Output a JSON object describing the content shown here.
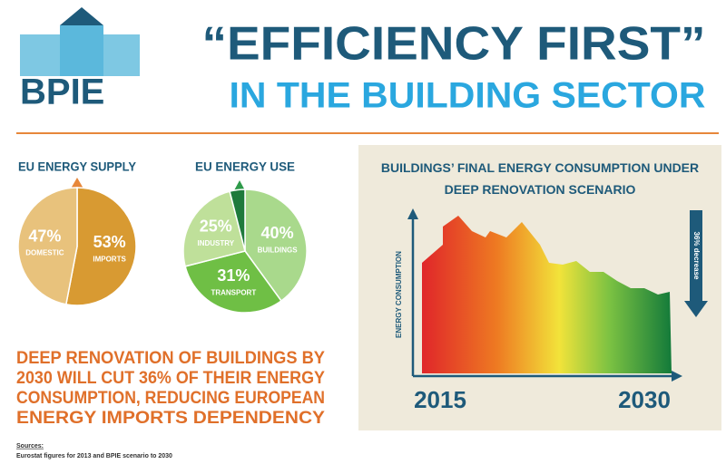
{
  "header": {
    "logo": "BPIE",
    "title": "“EFFICIENCY FIRST”",
    "subtitle": "IN THE BUILDING SECTOR"
  },
  "chart_data": [
    {
      "type": "pie",
      "title": "EU ENERGY SUPPLY",
      "categories": [
        "IMPORTS",
        "DOMESTIC"
      ],
      "values": [
        53,
        47
      ],
      "value_labels": [
        "53%",
        "47%"
      ],
      "colors": [
        "#d89a32",
        "#e8c27c"
      ]
    },
    {
      "type": "pie",
      "title": "EU ENERGY USE",
      "categories": [
        "BUILDINGS",
        "TRANSPORT",
        "INDUSTRY",
        null
      ],
      "values": [
        40,
        31,
        25,
        4
      ],
      "value_labels": [
        "40%",
        "31%",
        "25%",
        null
      ],
      "colors": [
        "#a9d98c",
        "#6fbf45",
        "#bfe09a",
        "#1f7a3c"
      ]
    },
    {
      "type": "area",
      "title": "BUILDINGS’ FINAL ENERGY CONSUMPTION UNDER DEEP RENOVATION SCENARIO",
      "y_label": "ENERGY CONSUMPTION",
      "xlim": [
        2015,
        2030
      ],
      "xticks": [
        2015,
        2030
      ],
      "annotation": "36% decrease"
    }
  ],
  "message": [
    "DEEP RENOVATION OF BUILDINGS BY",
    "2030 WILL CUT 36% OF THEIR ENERGY",
    "CONSUMPTION, REDUCING EUROPEAN",
    "ENERGY IMPORTS DEPENDENCY"
  ],
  "sources": {
    "label": "Sources:",
    "text": "Eurostat figures for 2013 and BPIE scenario to 2030"
  }
}
